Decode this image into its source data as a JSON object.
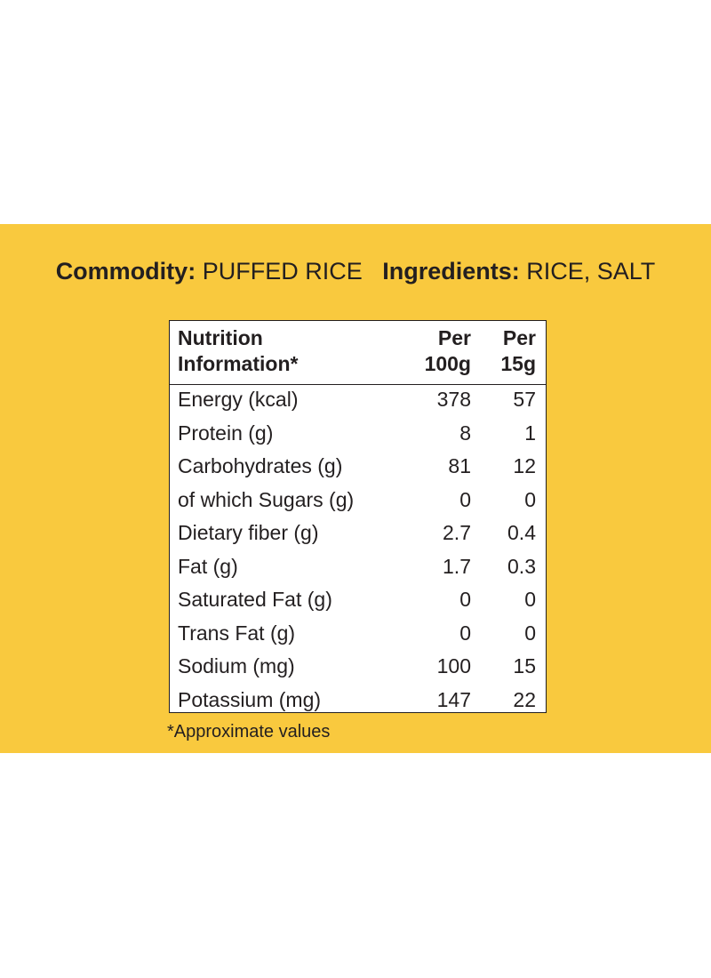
{
  "header": {
    "commodity_label": "Commodity:",
    "commodity": "PUFFED RICE",
    "ingredients_label": "Ingredients:",
    "ingredients": "RICE, SALT"
  },
  "table": {
    "columns": [
      [
        "Nutrition",
        "Information*"
      ],
      [
        "Per",
        "100g"
      ],
      [
        "Per",
        "15g"
      ]
    ],
    "rows": [
      [
        "Energy (kcal)",
        "378",
        "57"
      ],
      [
        "Protein (g)",
        "8",
        "1"
      ],
      [
        "Carbohydrates (g)",
        "81",
        "12"
      ],
      [
        "of which Sugars (g)",
        "0",
        "0"
      ],
      [
        "Dietary fiber (g)",
        "2.7",
        "0.4"
      ],
      [
        "Fat (g)",
        "1.7",
        "0.3"
      ],
      [
        "Saturated Fat (g)",
        "0",
        "0"
      ],
      [
        "Trans Fat (g)",
        "0",
        "0"
      ],
      [
        "Sodium (mg)",
        "100",
        "15"
      ],
      [
        "Potassium (mg)",
        "147",
        "22"
      ]
    ]
  },
  "footnote": "*Approximate values"
}
